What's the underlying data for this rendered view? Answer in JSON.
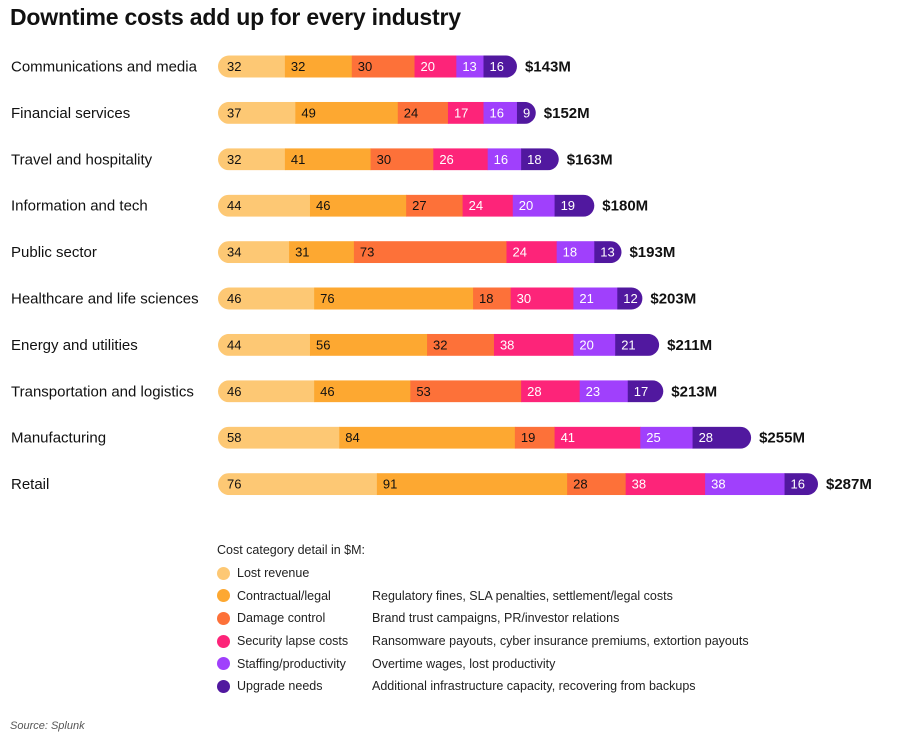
{
  "chart_data": {
    "type": "bar",
    "orientation": "horizontal",
    "stacked": true,
    "title": "Downtime costs add up for every industry",
    "xlabel": "",
    "ylabel": "",
    "unit": "$M",
    "xlim": [
      0,
      287
    ],
    "grid": false,
    "legend_position": "bottom",
    "categories": [
      "Communications and media",
      "Financial services",
      "Travel and hospitality",
      "Information and tech",
      "Public sector",
      "Healthcare and life sciences",
      "Energy and utilities",
      "Transportation and logistics",
      "Manufacturing",
      "Retail"
    ],
    "totals": [
      "$143M",
      "$152M",
      "$163M",
      "$180M",
      "$193M",
      "$203M",
      "$211M",
      "$213M",
      "$255M",
      "$287M"
    ],
    "series": [
      {
        "name": "Lost revenue",
        "color": "#FDC874",
        "label_color": "#111111",
        "values": [
          32,
          37,
          32,
          44,
          34,
          46,
          44,
          46,
          58,
          76
        ]
      },
      {
        "name": "Contractual/legal",
        "color": "#FDA831",
        "label_color": "#111111",
        "values": [
          32,
          49,
          41,
          46,
          31,
          76,
          56,
          46,
          84,
          91
        ]
      },
      {
        "name": "Damage control",
        "color": "#FD7139",
        "label_color": "#111111",
        "values": [
          30,
          24,
          30,
          27,
          73,
          18,
          32,
          53,
          19,
          28
        ]
      },
      {
        "name": "Security lapse costs",
        "color": "#FD2479",
        "label_color": "#ffffff",
        "values": [
          20,
          17,
          26,
          24,
          24,
          30,
          38,
          28,
          41,
          38
        ]
      },
      {
        "name": "Staffing/productivity",
        "color": "#A040FC",
        "label_color": "#ffffff",
        "values": [
          13,
          16,
          16,
          20,
          18,
          21,
          20,
          23,
          25,
          38
        ]
      },
      {
        "name": "Upgrade needs",
        "color": "#51189F",
        "label_color": "#ffffff",
        "values": [
          16,
          9,
          18,
          19,
          13,
          12,
          21,
          17,
          28,
          16
        ]
      }
    ]
  },
  "legend": {
    "title": "Cost category detail in $M:",
    "items": [
      {
        "name": "Lost revenue",
        "desc": "",
        "color": "#FDC874"
      },
      {
        "name": "Contractual/legal",
        "desc": "Regulatory fines, SLA penalties, settlement/legal costs",
        "color": "#FDA831"
      },
      {
        "name": "Damage control",
        "desc": "Brand trust campaigns, PR/investor relations",
        "color": "#FD7139"
      },
      {
        "name": "Security lapse costs",
        "desc": "Ransomware payouts, cyber insurance premiums, extortion payouts",
        "color": "#FD2479"
      },
      {
        "name": "Staffing/productivity",
        "desc": "Overtime wages, lost productivity",
        "color": "#A040FC"
      },
      {
        "name": "Upgrade needs",
        "desc": "Additional infrastructure capacity, recovering from backups",
        "color": "#51189F"
      }
    ]
  },
  "source": "Source: Splunk"
}
